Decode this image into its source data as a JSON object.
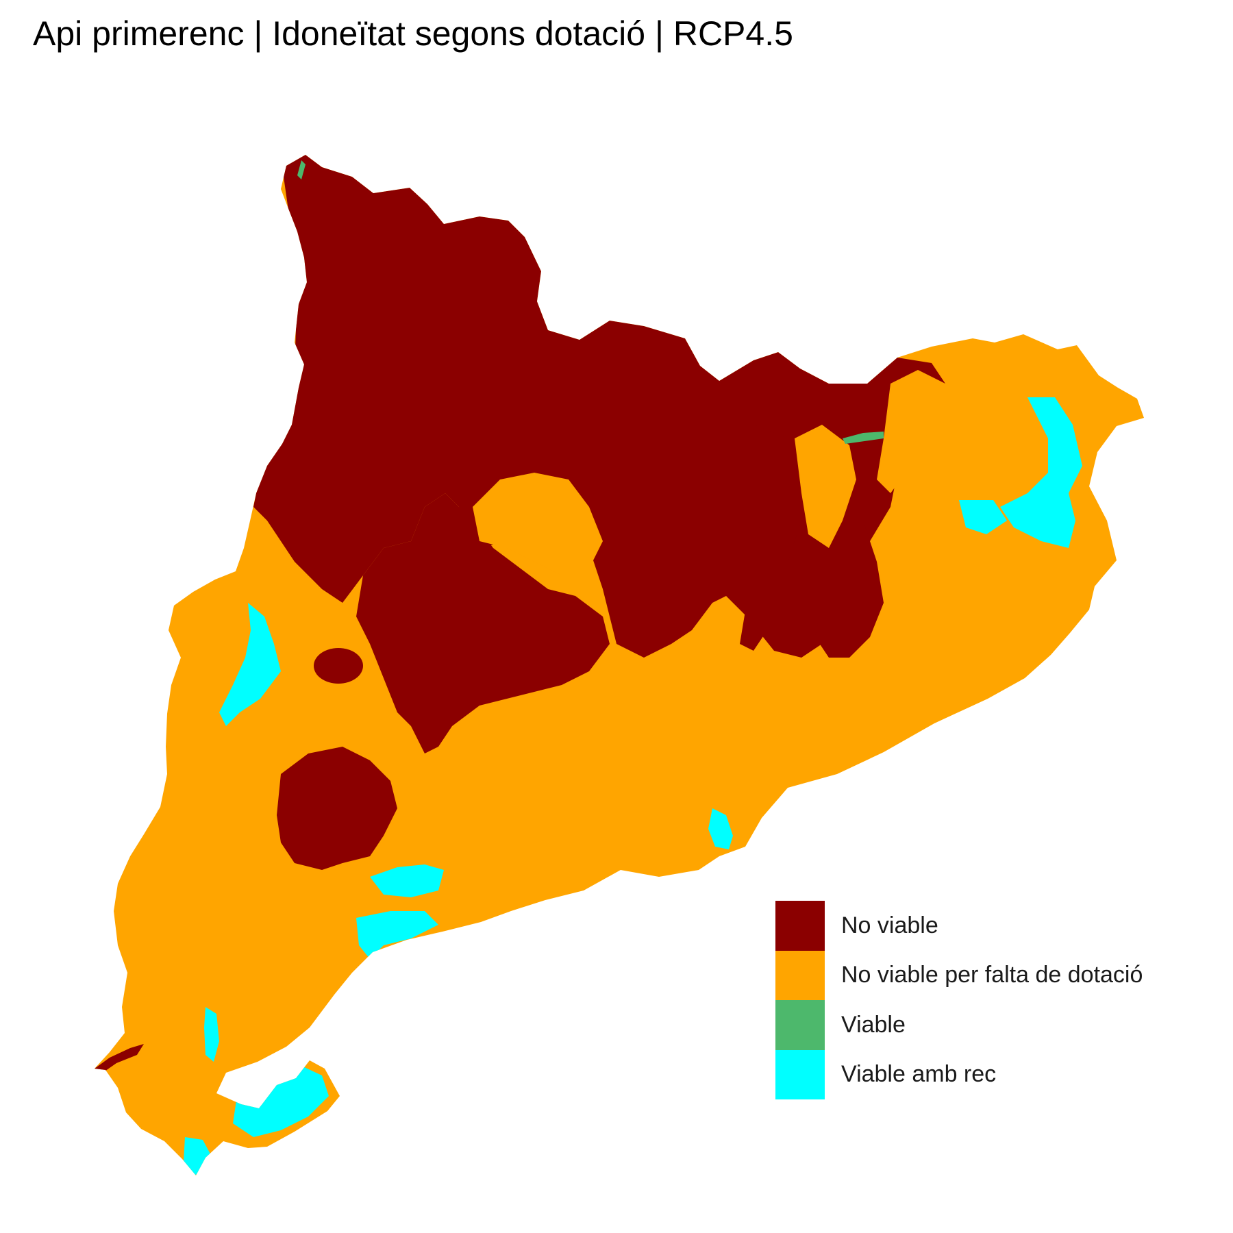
{
  "map": {
    "title": "Api primerenc | Idoneïtat segons dotació | RCP4.5",
    "categories": [
      {
        "label": "No viable",
        "color": "#8B0000"
      },
      {
        "label": "No viable per falta de dotació",
        "color": "#FFA500"
      },
      {
        "label": "Viable",
        "color": "#4DB86C"
      },
      {
        "label": "Viable amb rec",
        "color": "#00FFFF"
      }
    ]
  }
}
